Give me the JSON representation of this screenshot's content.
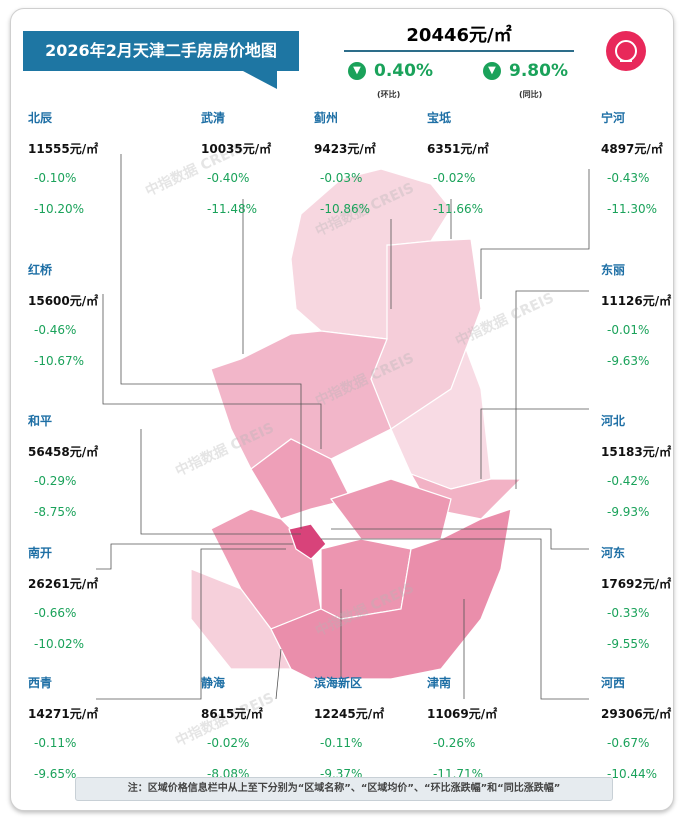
{
  "title": "2026年2月天津二手房房价地图",
  "city": {
    "avg_price": "20446元/㎡",
    "mom": "0.40%",
    "mom_label": "(环比)",
    "yoy": "9.80%",
    "yoy_label": "(同比)",
    "direction": "down"
  },
  "colors": {
    "title_bg": "#1e76a3",
    "name": "#1e6fa5",
    "change": "#1aa25a",
    "logo": "#e8285a"
  },
  "watermark": "中指数据 CREIS",
  "districts": [
    {
      "name": "北辰",
      "price": "11555元/㎡",
      "mom": "-0.10%",
      "yoy": "-10.20%"
    },
    {
      "name": "武清",
      "price": "10035元/㎡",
      "mom": "-0.40%",
      "yoy": "-11.48%"
    },
    {
      "name": "蓟州",
      "price": "9423元/㎡",
      "mom": "-0.03%",
      "yoy": "-10.86%"
    },
    {
      "name": "宝坻",
      "price": "6351元/㎡",
      "mom": "-0.02%",
      "yoy": "-11.66%"
    },
    {
      "name": "宁河",
      "price": "4897元/㎡",
      "mom": "-0.43%",
      "yoy": "-11.30%"
    },
    {
      "name": "红桥",
      "price": "15600元/㎡",
      "mom": "-0.46%",
      "yoy": "-10.67%"
    },
    {
      "name": "东丽",
      "price": "11126元/㎡",
      "mom": "-0.01%",
      "yoy": "-9.63%"
    },
    {
      "name": "和平",
      "price": "56458元/㎡",
      "mom": "-0.29%",
      "yoy": "-8.75%"
    },
    {
      "name": "河北",
      "price": "15183元/㎡",
      "mom": "-0.42%",
      "yoy": "-9.93%"
    },
    {
      "name": "南开",
      "price": "26261元/㎡",
      "mom": "-0.66%",
      "yoy": "-10.02%"
    },
    {
      "name": "河东",
      "price": "17692元/㎡",
      "mom": "-0.33%",
      "yoy": "-9.55%"
    },
    {
      "name": "西青",
      "price": "14271元/㎡",
      "mom": "-0.11%",
      "yoy": "-9.65%"
    },
    {
      "name": "静海",
      "price": "8615元/㎡",
      "mom": "-0.02%",
      "yoy": "-8.08%"
    },
    {
      "name": "滨海新区",
      "price": "12245元/㎡",
      "mom": "-0.11%",
      "yoy": "-9.37%"
    },
    {
      "name": "津南",
      "price": "11069元/㎡",
      "mom": "-0.26%",
      "yoy": "-11.71%"
    },
    {
      "name": "河西",
      "price": "29306元/㎡",
      "mom": "-0.67%",
      "yoy": "-10.44%"
    }
  ],
  "note": "注：区域价格信息栏中从上至下分别为“区域名称”、“区域均价”、“环比涨跌幅”和“同比涨跌幅”"
}
